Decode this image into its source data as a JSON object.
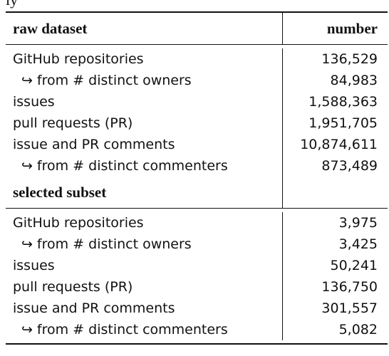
{
  "caption_fragment": "ly",
  "table": {
    "header": {
      "left": "raw dataset",
      "right": "number"
    },
    "raw_rows": [
      {
        "label": "GitHub repositories",
        "value": "136,529",
        "indent": false
      },
      {
        "label": "from # distinct owners",
        "value": "84,983",
        "indent": true
      },
      {
        "label": "issues",
        "value": "1,588,363",
        "indent": false
      },
      {
        "label": "pull requests (PR)",
        "value": "1,951,705",
        "indent": false
      },
      {
        "label": "issue and PR comments",
        "value": "10,874,611",
        "indent": false
      },
      {
        "label": "from # distinct commenters",
        "value": "873,489",
        "indent": true
      }
    ],
    "subset_header": "selected subset",
    "subset_rows": [
      {
        "label": "GitHub repositories",
        "value": "3,975",
        "indent": false
      },
      {
        "label": "from # distinct owners",
        "value": "3,425",
        "indent": true
      },
      {
        "label": "issues",
        "value": "50,241",
        "indent": false
      },
      {
        "label": "pull requests (PR)",
        "value": "136,750",
        "indent": false
      },
      {
        "label": "issue and PR comments",
        "value": "301,557",
        "indent": false
      },
      {
        "label": "from # distinct commenters",
        "value": "5,082",
        "indent": true
      }
    ],
    "indent_marker": "↪"
  }
}
